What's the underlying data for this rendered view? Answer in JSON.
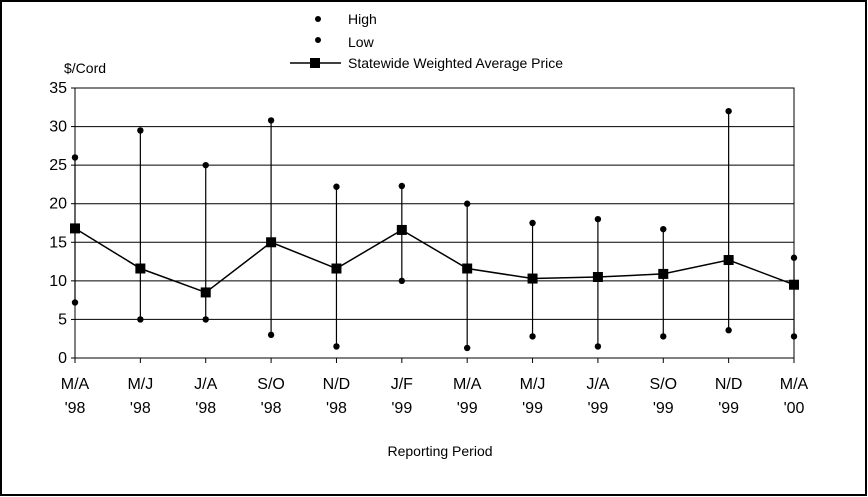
{
  "chart_data": {
    "type": "line",
    "ylabel": "$/Cord",
    "xlabel": "Reporting Period",
    "ylim": [
      0,
      35
    ],
    "yticks": [
      0,
      5,
      10,
      15,
      20,
      25,
      30,
      35
    ],
    "grid": "horizontal",
    "legend_position": "top-center",
    "categories": [
      [
        "M/A",
        "'98"
      ],
      [
        "M/J",
        "'98"
      ],
      [
        "J/A",
        "'98"
      ],
      [
        "S/O",
        "'98"
      ],
      [
        "N/D",
        "'98"
      ],
      [
        "J/F",
        "'99"
      ],
      [
        "M/A",
        "'99"
      ],
      [
        "M/J",
        "'99"
      ],
      [
        "J/A",
        "'99"
      ],
      [
        "S/O",
        "'99"
      ],
      [
        "N/D",
        "'99"
      ],
      [
        "M/A",
        "'00"
      ]
    ],
    "series": [
      {
        "name": "High",
        "marker": "dot",
        "values": [
          26,
          29.5,
          25,
          30.8,
          22.2,
          22.3,
          20,
          17.5,
          18,
          16.7,
          32,
          13
        ]
      },
      {
        "name": "Low",
        "marker": "dot",
        "values": [
          7.2,
          5,
          5,
          3,
          1.5,
          10,
          1.3,
          2.8,
          1.5,
          2.8,
          3.6,
          2.8
        ]
      },
      {
        "name": "Statewide Weighted Average Price",
        "marker": "square-line",
        "values": [
          16.8,
          11.6,
          8.5,
          15,
          11.6,
          16.6,
          11.6,
          10.3,
          10.5,
          10.9,
          12.7,
          9.5
        ]
      }
    ],
    "colors": {
      "line": "#000000",
      "grid": "#000000",
      "frame": "#000000"
    }
  }
}
